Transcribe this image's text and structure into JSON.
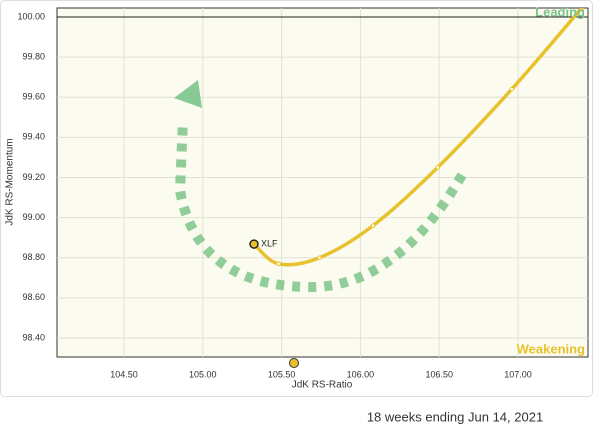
{
  "chart_data": {
    "type": "rrg",
    "x_label": "JdK RS-Ratio",
    "y_label": "JdK RS-Momentum",
    "quadrants": {
      "top_right": "Leading",
      "bottom_right": "Weakening"
    },
    "footer": "18 weeks ending Jun 14, 2021",
    "xlim": [
      104.075,
      107.444
    ],
    "ylim": [
      98.305,
      100.045
    ],
    "xticks": [
      {
        "value": 104.5,
        "label": "104.50"
      },
      {
        "value": 105,
        "label": "105.00"
      },
      {
        "value": 105.5,
        "label": "105.50"
      },
      {
        "value": 106,
        "label": "106.00"
      },
      {
        "value": 106.5,
        "label": "106.50"
      },
      {
        "value": 107,
        "label": "107.00"
      }
    ],
    "yticks": [
      {
        "value": 98.4,
        "label": "98.40"
      },
      {
        "value": 98.6,
        "label": "98.60"
      },
      {
        "value": 98.8,
        "label": "98.80"
      },
      {
        "value": 99,
        "label": "99.00"
      },
      {
        "value": 99.2,
        "label": "99.20"
      },
      {
        "value": 99.4,
        "label": "99.40"
      },
      {
        "value": 99.6,
        "label": "99.60"
      },
      {
        "value": 99.8,
        "label": "99.80"
      },
      {
        "value": 100,
        "label": "100.00"
      }
    ],
    "reference_lines": {
      "y": 100
    },
    "grid": true,
    "series": [
      {
        "name": "XLF",
        "color": "#e8c22c",
        "x": [
          105.325,
          105.48,
          105.74,
          106.08,
          106.49,
          106.96,
          107.42
        ],
        "y": [
          98.868,
          98.77,
          98.8,
          98.96,
          99.25,
          99.64,
          100.06
        ]
      }
    ]
  }
}
